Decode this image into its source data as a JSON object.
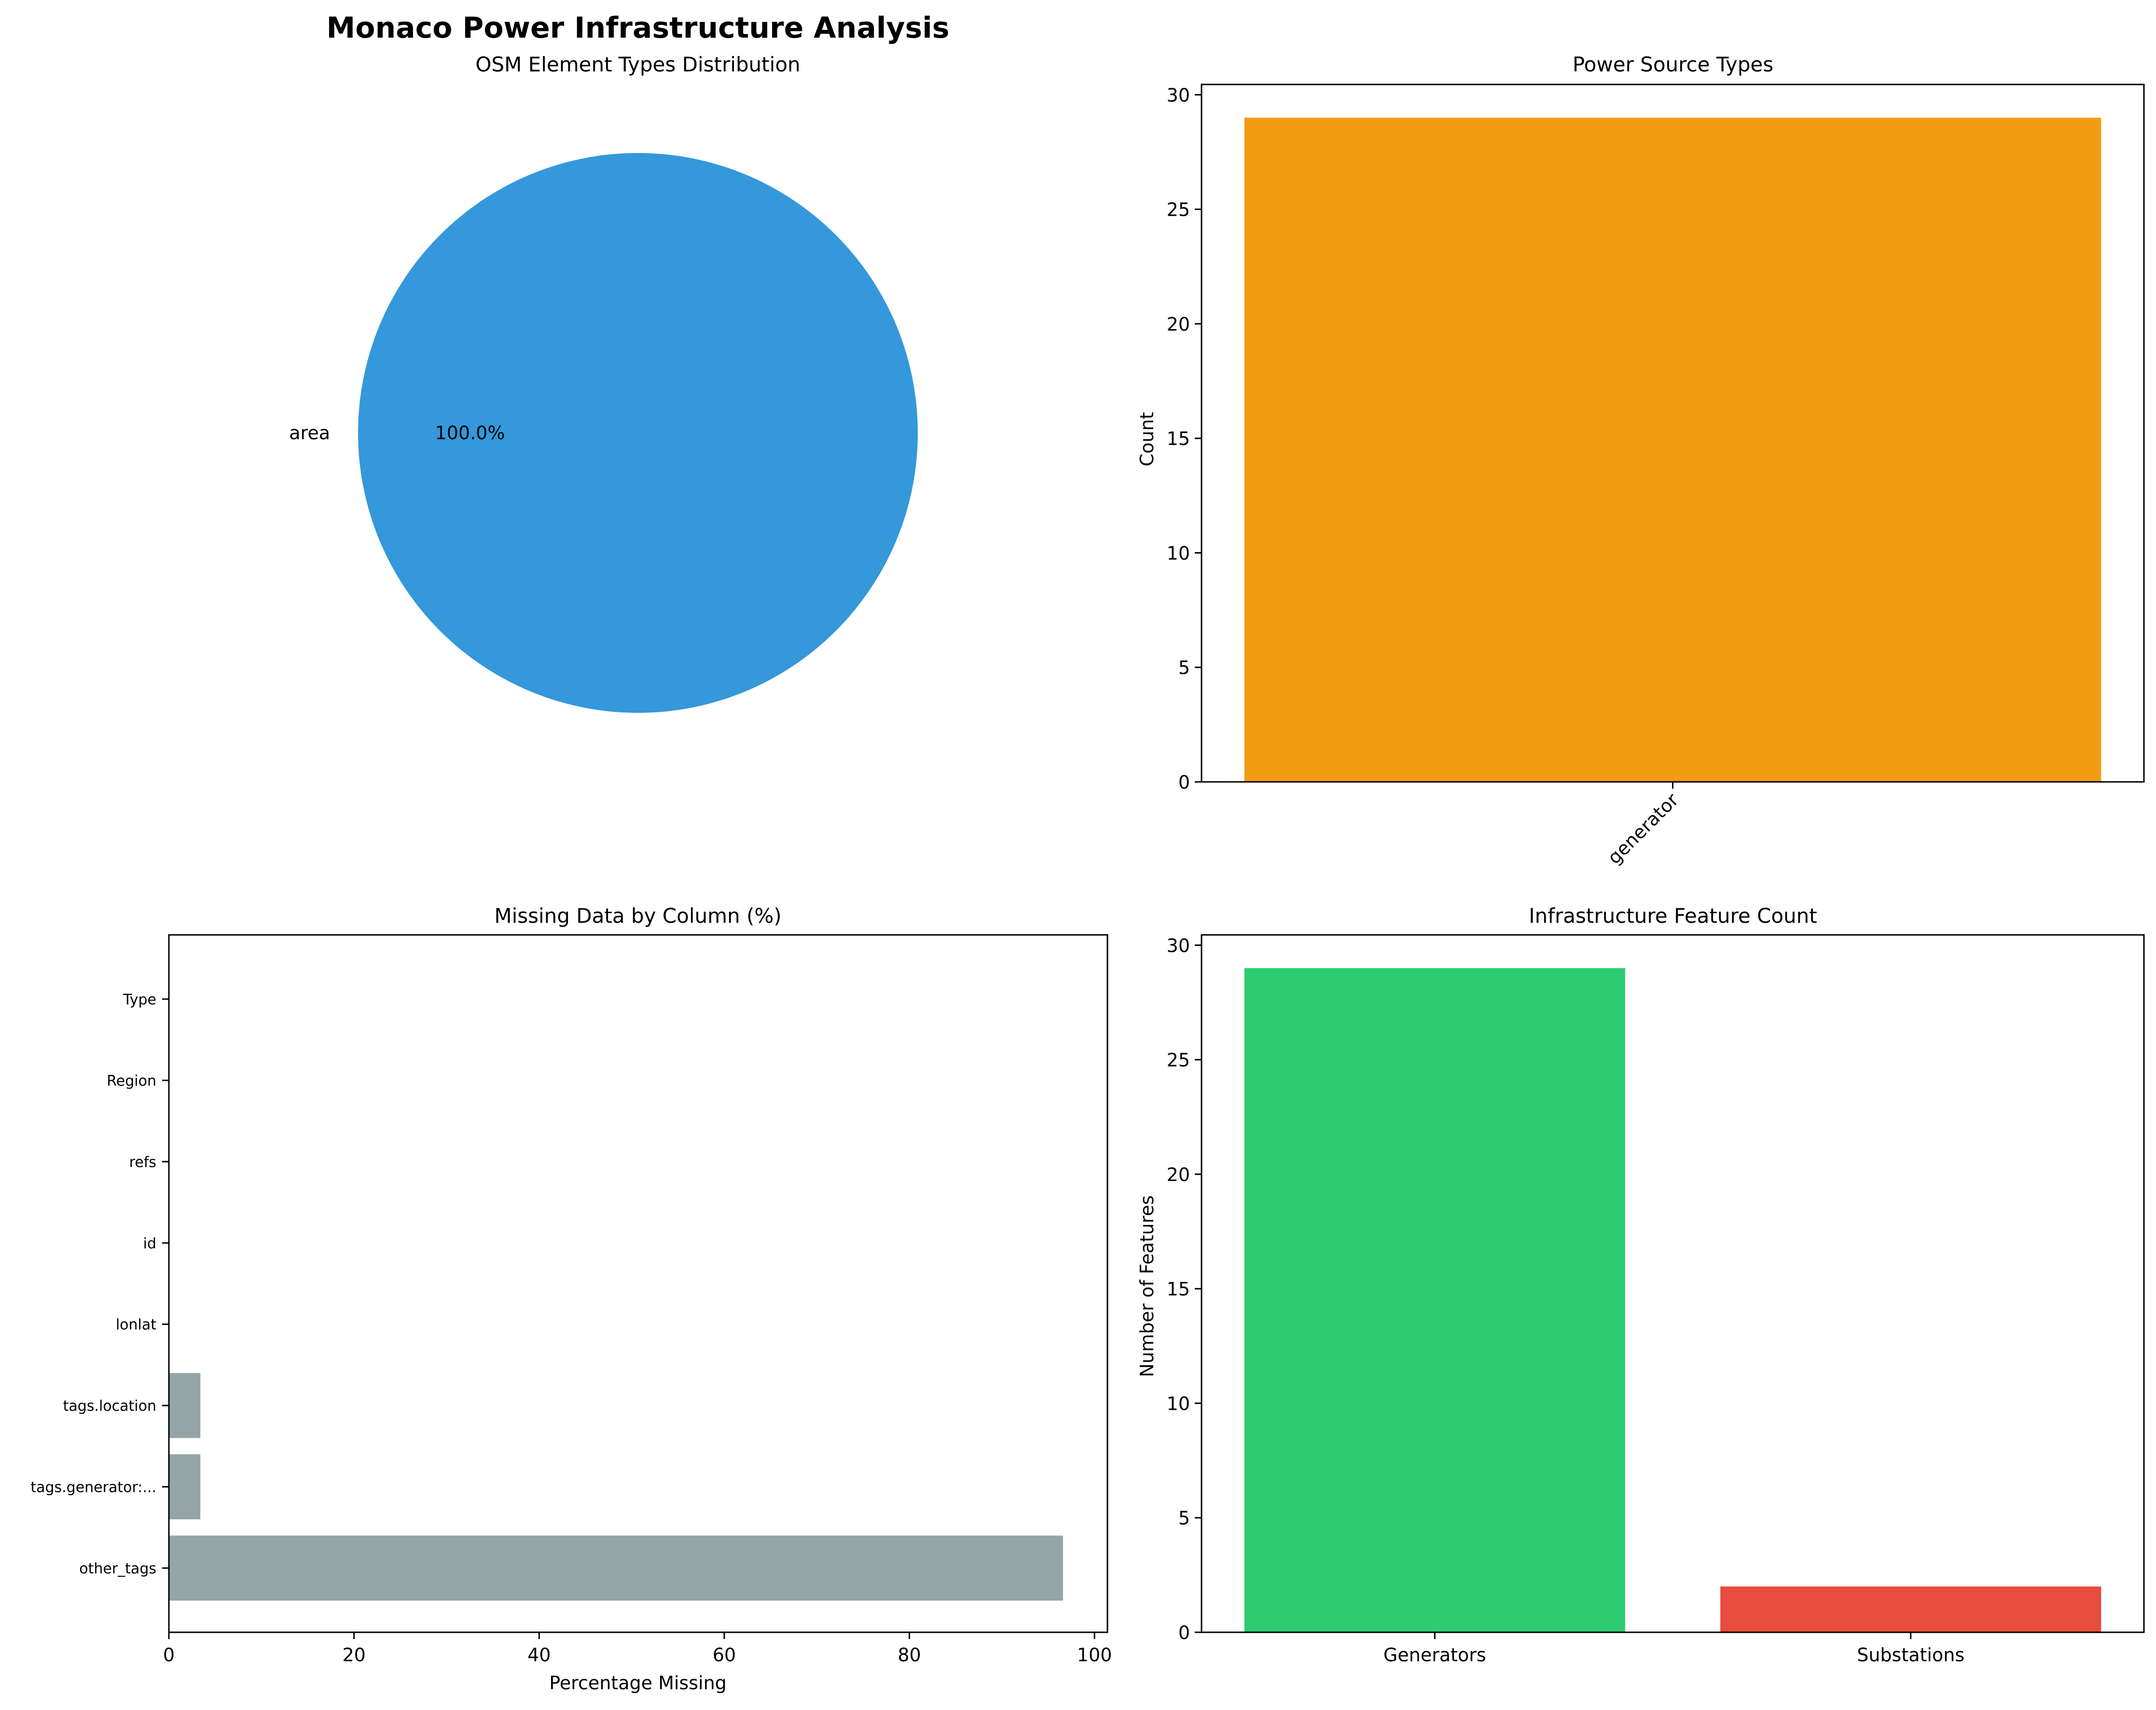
{
  "figure": {
    "title": "Monaco Power Infrastructure Analysis"
  },
  "chart_data": [
    {
      "type": "pie",
      "title": "OSM Element Types Distribution",
      "slices": [
        {
          "label": "area",
          "value": 100.0,
          "pct_label": "100.0%",
          "color": "#3498db"
        }
      ]
    },
    {
      "type": "bar",
      "title": "Power Source Types",
      "xlabel": "",
      "ylabel": "Count",
      "categories": [
        "generator"
      ],
      "values": [
        29
      ],
      "colors": [
        "#f39c12"
      ],
      "ylim": [
        0,
        30.45
      ],
      "yticks": [
        0,
        5,
        10,
        15,
        20,
        25,
        30
      ],
      "xtick_rotation": 45
    },
    {
      "type": "bar",
      "orientation": "horizontal",
      "title": "Missing Data by Column (%)",
      "xlabel": "Percentage Missing",
      "ylabel": "",
      "categories": [
        "other_tags",
        "tags.generator:...",
        "tags.location",
        "lonlat",
        "id",
        "refs",
        "Region",
        "Type"
      ],
      "values": [
        96.6,
        3.4,
        3.4,
        0,
        0,
        0,
        0,
        0
      ],
      "color": "#95a5a6",
      "xlim": [
        0,
        101.4
      ],
      "xticks": [
        0,
        20,
        40,
        60,
        80,
        100
      ]
    },
    {
      "type": "bar",
      "title": "Infrastructure Feature Count",
      "xlabel": "",
      "ylabel": "Number of Features",
      "categories": [
        "Generators",
        "Substations"
      ],
      "values": [
        29,
        2
      ],
      "colors": [
        "#2ecc71",
        "#e74c3c"
      ],
      "ylim": [
        0,
        30.45
      ],
      "yticks": [
        0,
        5,
        10,
        15,
        20,
        25,
        30
      ]
    }
  ]
}
